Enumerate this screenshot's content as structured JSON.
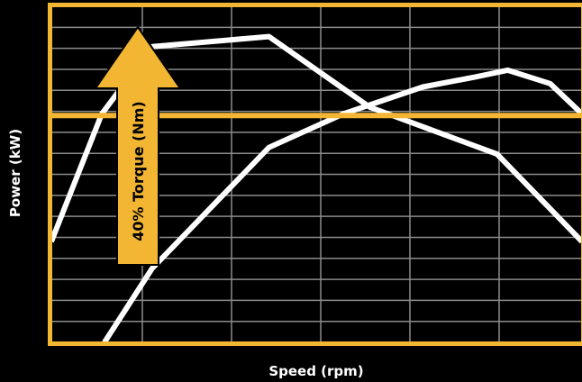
{
  "chart_data": {
    "type": "line",
    "xlabel": "Speed (rpm)",
    "ylabel": "Power (kW)",
    "xlim": [
      0,
      100
    ],
    "ylim": [
      0,
      100
    ],
    "grid": true,
    "series": [
      {
        "x": [
          0,
          9.5,
          19,
          41,
          60,
          84,
          100
        ],
        "y": [
          30,
          68,
          88,
          91,
          70,
          56,
          30
        ]
      },
      {
        "x": [
          10,
          19,
          41,
          55,
          70,
          80,
          86,
          94,
          100
        ],
        "y": [
          0,
          22,
          58,
          68,
          76,
          79,
          81,
          77,
          68
        ]
      }
    ],
    "reference_line": {
      "y": 67.5
    },
    "annotation": {
      "text": "40% Torque (Nm)"
    },
    "colors": {
      "background": "#000000",
      "frame": "#f2b632",
      "grid": "#8c8c8c",
      "curves": "#ffffff",
      "arrow": "#f2b632"
    }
  }
}
